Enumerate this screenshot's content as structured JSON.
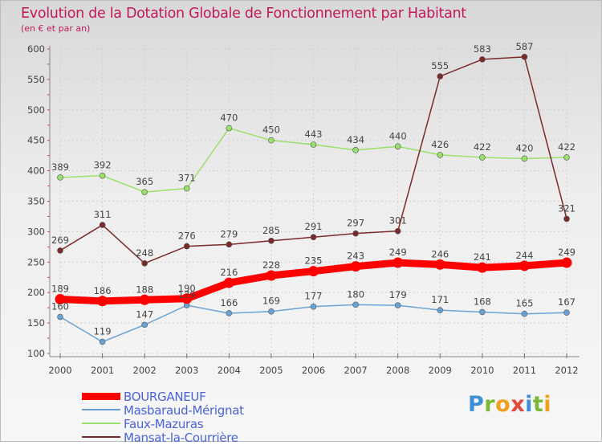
{
  "header": {
    "title": "Evolution de la Dotation Globale de Fonctionnement par Habitant",
    "subtitle": "(en € et par an)"
  },
  "logo": {
    "text": "Proxiti"
  },
  "colors": {
    "title": "#c2185b",
    "axis_text": "#444444",
    "legend_text": "#4a63d8"
  },
  "chart_data": {
    "type": "line",
    "x": [
      "2000",
      "2001",
      "2002",
      "2003",
      "2004",
      "2005",
      "2006",
      "2007",
      "2008",
      "2009",
      "2010",
      "2011",
      "2012"
    ],
    "ylim": [
      100,
      600
    ],
    "yticks": [
      "100",
      "150",
      "200",
      "250",
      "300",
      "350",
      "400",
      "450",
      "500",
      "550",
      "600"
    ],
    "grid": true,
    "legend_position": "bottom-left",
    "series": [
      {
        "name": "BOURGANEUF",
        "color": "#ff0000",
        "values": [
          189,
          186,
          188,
          190,
          216,
          228,
          235,
          243,
          249,
          246,
          241,
          244,
          249
        ],
        "labels": [
          "189",
          "186",
          "188",
          "190",
          "216",
          "228",
          "235",
          "243",
          "249",
          "246",
          "241",
          "244",
          "249"
        ]
      },
      {
        "name": "Masbaraud-Mérignat",
        "color": "#6aa2d6",
        "values": [
          160,
          119,
          147,
          179,
          166,
          169,
          177,
          180,
          179,
          171,
          168,
          165,
          167
        ],
        "labels": [
          "160",
          "119",
          "147",
          "179",
          "166",
          "169",
          "177",
          "180",
          "179",
          "171",
          "168",
          "165",
          "167"
        ]
      },
      {
        "name": "Faux-Mazuras",
        "color": "#9ae06a",
        "values": [
          389,
          392,
          365,
          371,
          470,
          450,
          443,
          434,
          440,
          426,
          422,
          420,
          422
        ],
        "labels": [
          "389",
          "392",
          "365",
          "371",
          "470",
          "450",
          "443",
          "434",
          "440",
          "426",
          "422",
          "420",
          "422"
        ]
      },
      {
        "name": "Mansat-la-Courrière",
        "color": "#7a2a2a",
        "values": [
          269,
          311,
          248,
          276,
          279,
          285,
          291,
          297,
          301,
          555,
          583,
          587,
          321
        ],
        "labels": [
          "269",
          "311",
          "248",
          "276",
          "279",
          "285",
          "291",
          "297",
          "301",
          "555",
          "583",
          "587",
          "321"
        ]
      }
    ]
  }
}
